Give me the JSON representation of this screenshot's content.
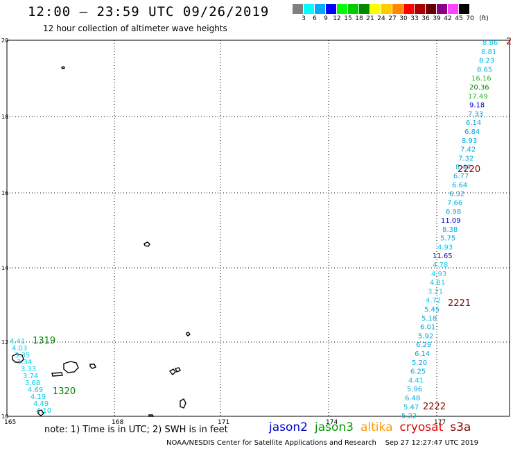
{
  "header": {
    "title": "12:00 – 23:59 UTC 09/26/2019",
    "subtitle": "12 hour collection of altimeter wave heights"
  },
  "legend": {
    "colors": [
      "#808080",
      "#00ffff",
      "#00aaff",
      "#0000ff",
      "#00ff00",
      "#00cc00",
      "#008800",
      "#ffff00",
      "#ffcc00",
      "#ff8800",
      "#ff0000",
      "#aa0000",
      "#660000",
      "#880088",
      "#ff44ff",
      "#000000"
    ],
    "labels": [
      "3",
      "6",
      "9",
      "12",
      "15",
      "18",
      "21",
      "24",
      "27",
      "30",
      "33",
      "36",
      "39",
      "42",
      "45",
      "70",
      "(ft)"
    ]
  },
  "axes": {
    "x_ticks": [
      "165",
      "168",
      "171",
      "174",
      "177"
    ],
    "y_ticks": [
      "20",
      "18",
      "16",
      "14",
      "12",
      "10"
    ]
  },
  "track_east": [
    {
      "v": "8.86",
      "c": "#00bbee"
    },
    {
      "v": "8.81",
      "c": "#00bbee"
    },
    {
      "v": "8.23",
      "c": "#00aadd"
    },
    {
      "v": "8.65",
      "c": "#00aadd"
    },
    {
      "v": "16.16",
      "c": "#22bb22"
    },
    {
      "v": "20.36",
      "c": "#008800"
    },
    {
      "v": "17.49",
      "c": "#22bb22"
    },
    {
      "v": "9.18",
      "c": "#0000cc"
    },
    {
      "v": "7.33",
      "c": "#00aadd"
    },
    {
      "v": "6.14",
      "c": "#00aadd"
    },
    {
      "v": "6.84",
      "c": "#00aadd"
    },
    {
      "v": "8.93",
      "c": "#00aadd"
    },
    {
      "v": "7.42",
      "c": "#00aadd"
    },
    {
      "v": "7.32",
      "c": "#00aadd"
    },
    {
      "v": "8.44",
      "c": "#00aadd"
    },
    {
      "v": "6.77",
      "c": "#00aadd"
    },
    {
      "v": "6.64",
      "c": "#00aadd"
    },
    {
      "v": "6.32",
      "c": "#00aadd"
    },
    {
      "v": "7.66",
      "c": "#00aadd"
    },
    {
      "v": "6.98",
      "c": "#00aadd"
    },
    {
      "v": "11.09",
      "c": "#0000cc"
    },
    {
      "v": "8.38",
      "c": "#00aadd"
    },
    {
      "v": "5.75",
      "c": "#00aadd"
    },
    {
      "v": "4.93",
      "c": "#00ccee"
    },
    {
      "v": "11.65",
      "c": "#0000cc"
    },
    {
      "v": "4.78",
      "c": "#00ccee"
    },
    {
      "v": "4.93",
      "c": "#00ccee"
    },
    {
      "v": "4.81",
      "c": "#00ccee"
    },
    {
      "v": "3.21",
      "c": "#00ccee"
    },
    {
      "v": "4.72",
      "c": "#00ccee"
    },
    {
      "v": "5.45",
      "c": "#00aadd"
    },
    {
      "v": "5.18",
      "c": "#00aadd"
    },
    {
      "v": "6.01",
      "c": "#00aadd"
    },
    {
      "v": "5.92",
      "c": "#00aadd"
    },
    {
      "v": "6.29",
      "c": "#00aadd"
    },
    {
      "v": "6.14",
      "c": "#00aadd"
    },
    {
      "v": "5.20",
      "c": "#00aadd"
    },
    {
      "v": "6.25",
      "c": "#00aadd"
    },
    {
      "v": "4.41",
      "c": "#00ccee"
    },
    {
      "v": "5.96",
      "c": "#00aadd"
    },
    {
      "v": "6.48",
      "c": "#00aadd"
    },
    {
      "v": "5.47",
      "c": "#00aadd"
    },
    {
      "v": "5.22",
      "c": "#00aadd"
    }
  ],
  "track_west": [
    {
      "v": "4.41",
      "c": "#00ccee"
    },
    {
      "v": "4.03",
      "c": "#00ccee"
    },
    {
      "v": "3.35",
      "c": "#00ccee"
    },
    {
      "v": "3.34",
      "c": "#00ccee"
    },
    {
      "v": "3.33",
      "c": "#00ccee"
    },
    {
      "v": "3.74",
      "c": "#00ccee"
    },
    {
      "v": "3.68",
      "c": "#00ccee"
    },
    {
      "v": "4.69",
      "c": "#00ccee"
    },
    {
      "v": "4.19",
      "c": "#00ccee"
    },
    {
      "v": "4.49",
      "c": "#00ccee"
    },
    {
      "v": "4.10",
      "c": "#00ccee"
    }
  ],
  "time_labels": [
    {
      "t": "2",
      "c": "#880000"
    },
    {
      "t": "2220",
      "c": "#880000"
    },
    {
      "t": "2221",
      "c": "#880000"
    },
    {
      "t": "2222",
      "c": "#880000"
    },
    {
      "t": "1319",
      "c": "#008800"
    },
    {
      "t": "1320",
      "c": "#008800"
    }
  ],
  "note": "note: 1) Time is in UTC; 2) SWH is in feet",
  "satellites": [
    {
      "name": "jason2",
      "color": "#0000cc"
    },
    {
      "name": "jason3",
      "color": "#009900"
    },
    {
      "name": "altika",
      "color": "#ff9900"
    },
    {
      "name": "cryosat",
      "color": "#dd0000"
    },
    {
      "name": "s3a",
      "color": "#880000"
    }
  ],
  "footer": "NOAA/NESDIS Center for Satellite Applications and Research    Sep 27 12:27:47 UTC 2019"
}
